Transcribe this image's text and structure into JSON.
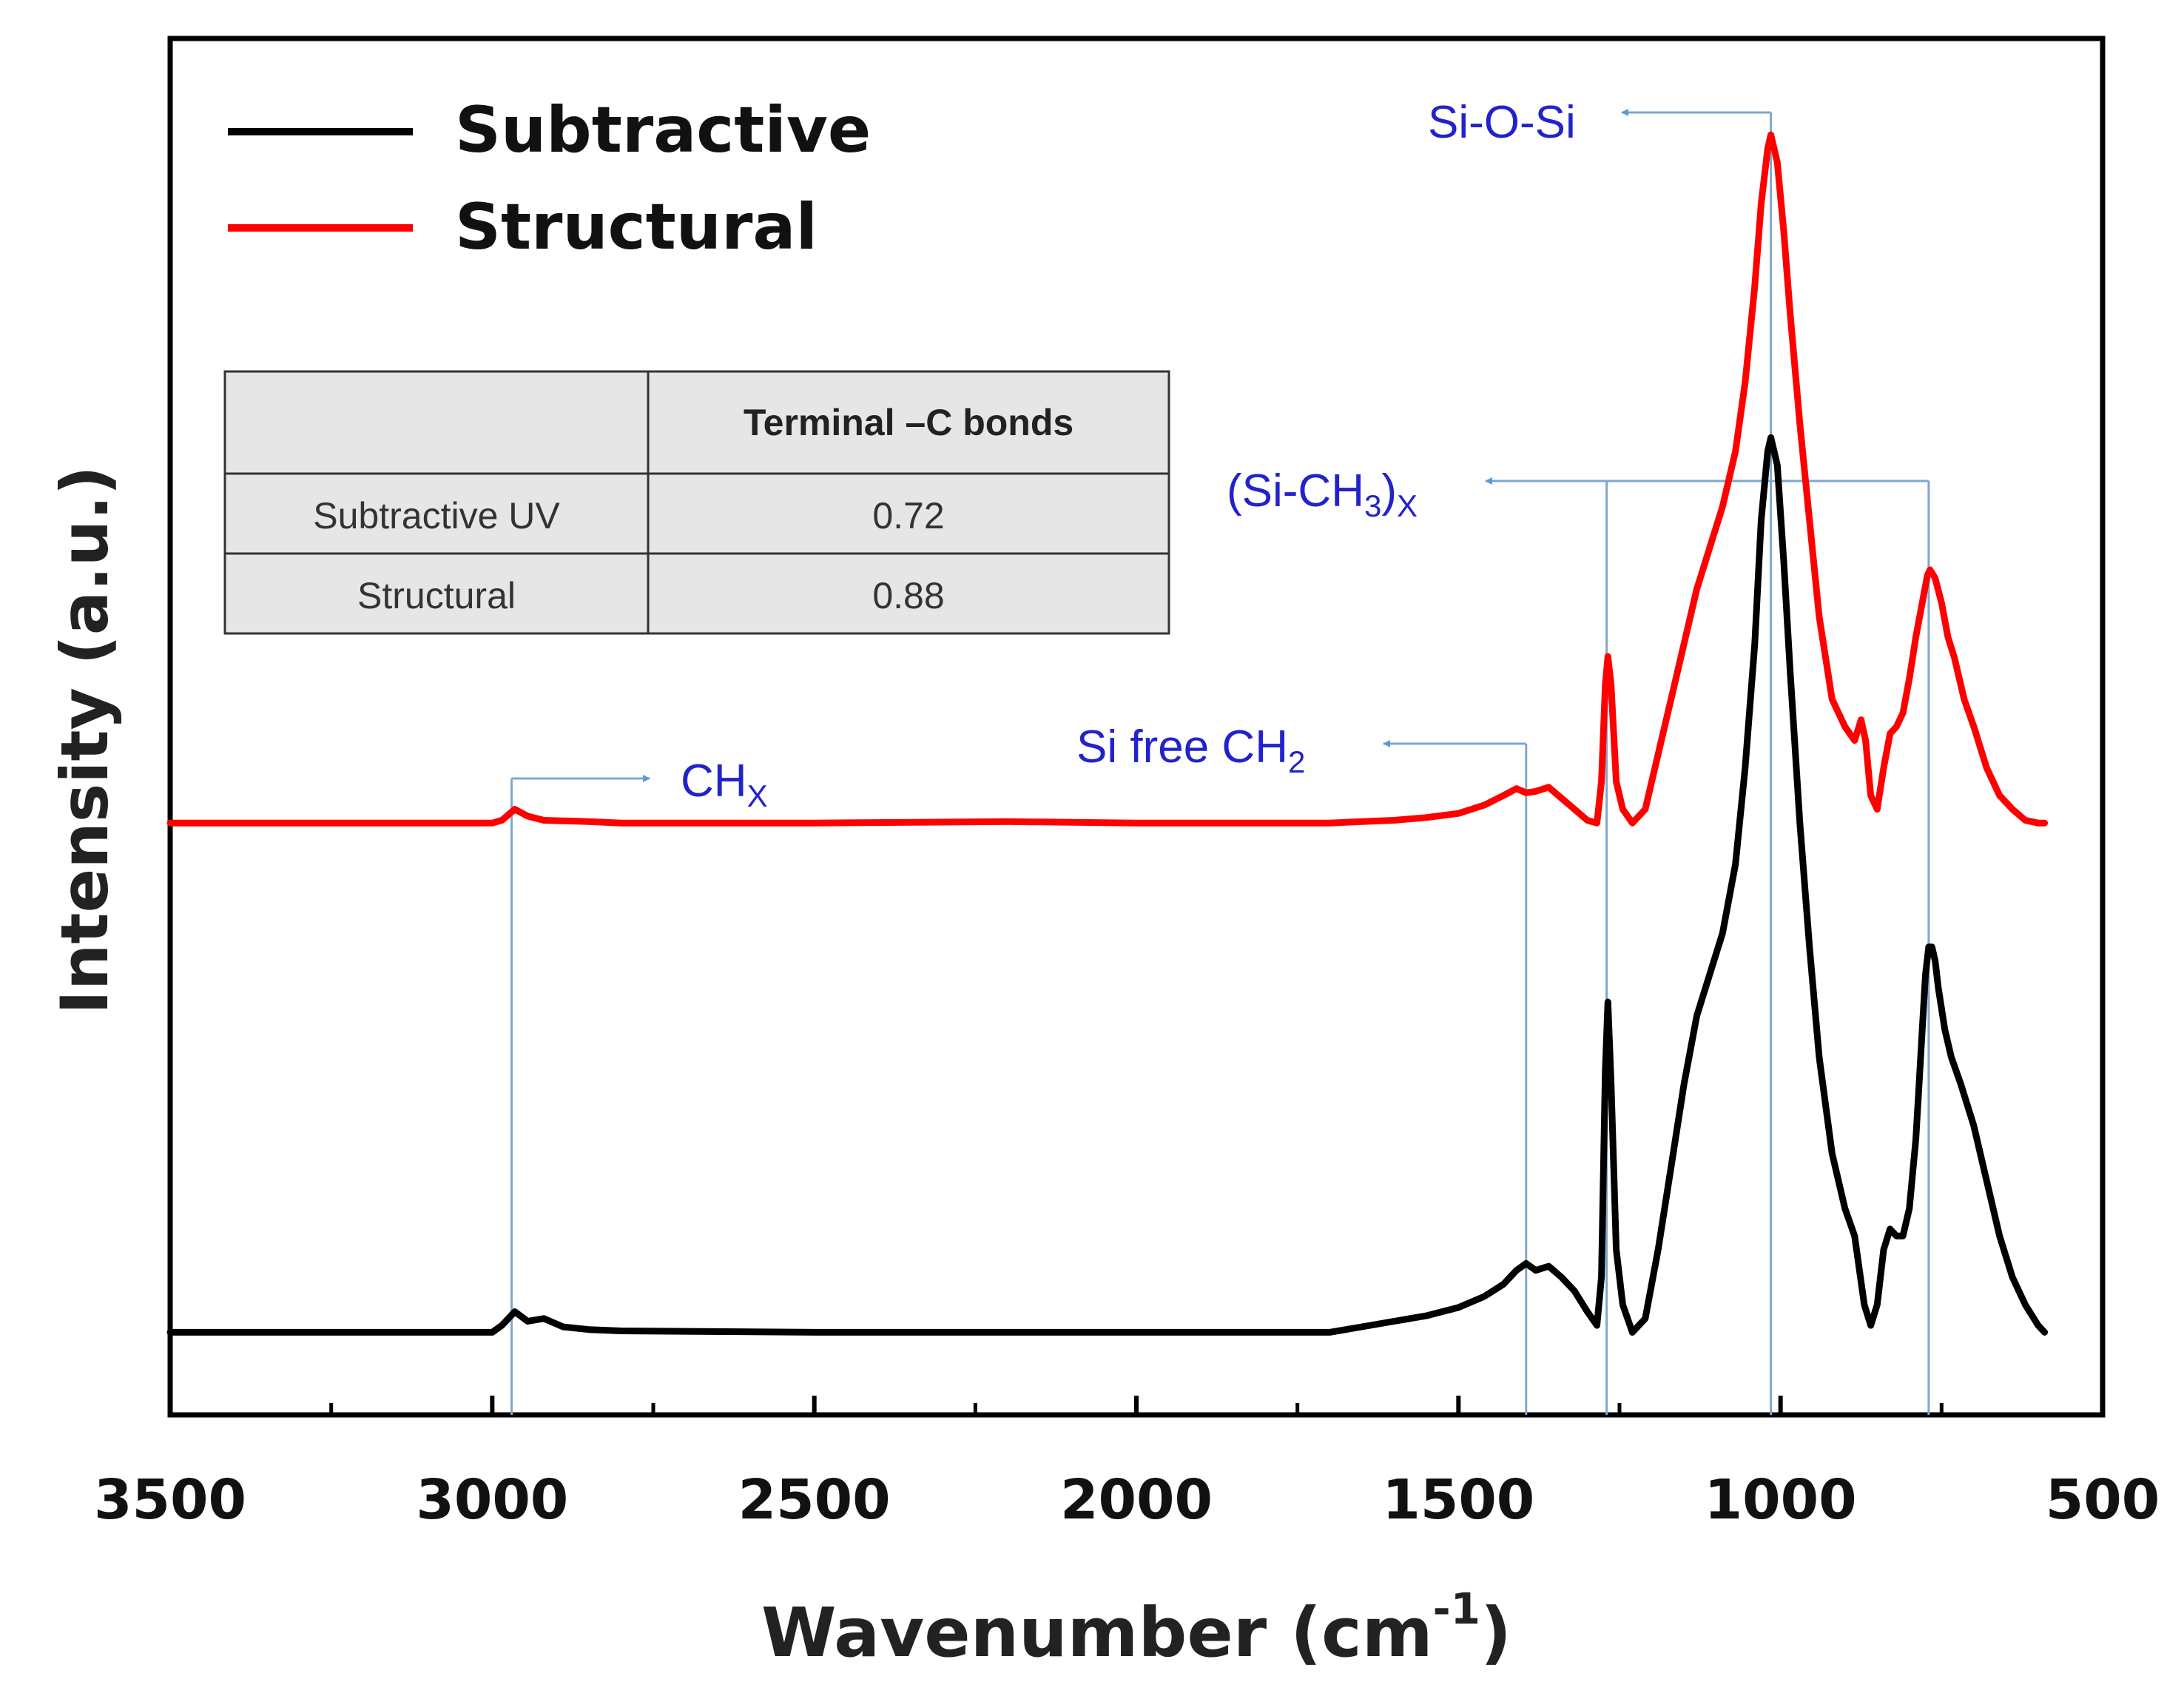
{
  "chart_data": {
    "type": "line",
    "xlabel": "Wavenumber (cm",
    "xlabel_sup": "-1",
    "xlabel_close": ")",
    "ylabel": "Intensity (a.u.)",
    "xlim": [
      3500,
      500
    ],
    "x_ticks": [
      3500,
      3000,
      2500,
      2000,
      1500,
      1000,
      500
    ],
    "y_ticks": [],
    "legend_position": "top-left",
    "series": [
      {
        "name": "Subtractive",
        "color": "#000000",
        "points": [
          [
            3500,
            0.06
          ],
          [
            3100,
            0.06
          ],
          [
            3000,
            0.06
          ],
          [
            2985,
            0.065
          ],
          [
            2965,
            0.075
          ],
          [
            2945,
            0.068
          ],
          [
            2920,
            0.07
          ],
          [
            2890,
            0.064
          ],
          [
            2850,
            0.062
          ],
          [
            2800,
            0.061
          ],
          [
            2500,
            0.06
          ],
          [
            2000,
            0.06
          ],
          [
            1700,
            0.06
          ],
          [
            1650,
            0.064
          ],
          [
            1600,
            0.068
          ],
          [
            1550,
            0.072
          ],
          [
            1500,
            0.078
          ],
          [
            1460,
            0.086
          ],
          [
            1430,
            0.095
          ],
          [
            1410,
            0.105
          ],
          [
            1395,
            0.11
          ],
          [
            1380,
            0.105
          ],
          [
            1360,
            0.108
          ],
          [
            1340,
            0.1
          ],
          [
            1320,
            0.09
          ],
          [
            1300,
            0.075
          ],
          [
            1285,
            0.065
          ],
          [
            1278,
            0.1
          ],
          [
            1272,
            0.25
          ],
          [
            1268,
            0.3
          ],
          [
            1263,
            0.24
          ],
          [
            1255,
            0.12
          ],
          [
            1245,
            0.08
          ],
          [
            1230,
            0.06
          ],
          [
            1210,
            0.07
          ],
          [
            1190,
            0.12
          ],
          [
            1170,
            0.18
          ],
          [
            1150,
            0.24
          ],
          [
            1130,
            0.29
          ],
          [
            1110,
            0.32
          ],
          [
            1090,
            0.35
          ],
          [
            1070,
            0.4
          ],
          [
            1055,
            0.47
          ],
          [
            1040,
            0.56
          ],
          [
            1030,
            0.65
          ],
          [
            1020,
            0.7
          ],
          [
            1015,
            0.71
          ],
          [
            1005,
            0.69
          ],
          [
            995,
            0.62
          ],
          [
            985,
            0.54
          ],
          [
            970,
            0.43
          ],
          [
            955,
            0.34
          ],
          [
            940,
            0.26
          ],
          [
            920,
            0.19
          ],
          [
            900,
            0.15
          ],
          [
            885,
            0.13
          ],
          [
            870,
            0.08
          ],
          [
            860,
            0.065
          ],
          [
            850,
            0.08
          ],
          [
            840,
            0.12
          ],
          [
            830,
            0.135
          ],
          [
            820,
            0.13
          ],
          [
            810,
            0.13
          ],
          [
            800,
            0.15
          ],
          [
            790,
            0.2
          ],
          [
            785,
            0.24
          ],
          [
            780,
            0.28
          ],
          [
            775,
            0.32
          ],
          [
            770,
            0.34
          ],
          [
            765,
            0.34
          ],
          [
            760,
            0.33
          ],
          [
            755,
            0.31
          ],
          [
            745,
            0.28
          ],
          [
            735,
            0.26
          ],
          [
            720,
            0.24
          ],
          [
            700,
            0.21
          ],
          [
            680,
            0.17
          ],
          [
            660,
            0.13
          ],
          [
            640,
            0.1
          ],
          [
            620,
            0.08
          ],
          [
            600,
            0.065
          ],
          [
            590,
            0.06
          ]
        ]
      },
      {
        "name": "Structural",
        "color": "#ff0000",
        "points": [
          [
            3500,
            0.43
          ],
          [
            3100,
            0.43
          ],
          [
            3000,
            0.43
          ],
          [
            2985,
            0.432
          ],
          [
            2965,
            0.44
          ],
          [
            2945,
            0.435
          ],
          [
            2920,
            0.432
          ],
          [
            2850,
            0.431
          ],
          [
            2800,
            0.43
          ],
          [
            2500,
            0.43
          ],
          [
            2200,
            0.431
          ],
          [
            2000,
            0.43
          ],
          [
            1700,
            0.43
          ],
          [
            1650,
            0.431
          ],
          [
            1600,
            0.432
          ],
          [
            1550,
            0.434
          ],
          [
            1500,
            0.437
          ],
          [
            1460,
            0.443
          ],
          [
            1430,
            0.45
          ],
          [
            1410,
            0.455
          ],
          [
            1395,
            0.452
          ],
          [
            1380,
            0.453
          ],
          [
            1360,
            0.456
          ],
          [
            1340,
            0.448
          ],
          [
            1320,
            0.44
          ],
          [
            1300,
            0.432
          ],
          [
            1285,
            0.43
          ],
          [
            1278,
            0.46
          ],
          [
            1272,
            0.53
          ],
          [
            1268,
            0.551
          ],
          [
            1263,
            0.53
          ],
          [
            1255,
            0.46
          ],
          [
            1245,
            0.44
          ],
          [
            1230,
            0.43
          ],
          [
            1210,
            0.44
          ],
          [
            1190,
            0.48
          ],
          [
            1170,
            0.52
          ],
          [
            1150,
            0.56
          ],
          [
            1130,
            0.6
          ],
          [
            1110,
            0.63
          ],
          [
            1090,
            0.66
          ],
          [
            1070,
            0.7
          ],
          [
            1055,
            0.75
          ],
          [
            1040,
            0.82
          ],
          [
            1030,
            0.88
          ],
          [
            1020,
            0.92
          ],
          [
            1015,
            0.93
          ],
          [
            1005,
            0.91
          ],
          [
            995,
            0.86
          ],
          [
            985,
            0.8
          ],
          [
            970,
            0.72
          ],
          [
            955,
            0.65
          ],
          [
            940,
            0.58
          ],
          [
            920,
            0.52
          ],
          [
            900,
            0.5
          ],
          [
            885,
            0.49
          ],
          [
            875,
            0.505
          ],
          [
            868,
            0.49
          ],
          [
            860,
            0.45
          ],
          [
            850,
            0.44
          ],
          [
            840,
            0.47
          ],
          [
            830,
            0.495
          ],
          [
            820,
            0.5
          ],
          [
            810,
            0.51
          ],
          [
            800,
            0.535
          ],
          [
            790,
            0.565
          ],
          [
            780,
            0.59
          ],
          [
            772,
            0.61
          ],
          [
            768,
            0.614
          ],
          [
            760,
            0.608
          ],
          [
            750,
            0.59
          ],
          [
            740,
            0.565
          ],
          [
            730,
            0.55
          ],
          [
            715,
            0.52
          ],
          [
            700,
            0.5
          ],
          [
            680,
            0.47
          ],
          [
            660,
            0.45
          ],
          [
            640,
            0.44
          ],
          [
            620,
            0.432
          ],
          [
            600,
            0.43
          ],
          [
            590,
            0.43
          ]
        ]
      }
    ],
    "annotations": [
      {
        "id": "si-o-si",
        "label": "Si-O-Si",
        "wavenumbers": [
          1015
        ]
      },
      {
        "id": "si-ch3",
        "label_parts": [
          "(Si-CH",
          "3",
          ")",
          "X"
        ],
        "wavenumbers": [
          1270,
          770
        ]
      },
      {
        "id": "si-free-ch2",
        "label_parts": [
          "Si free CH",
          "2"
        ],
        "wavenumbers": [
          1395
        ]
      },
      {
        "id": "chx",
        "label_parts": [
          "CH",
          "X"
        ],
        "wavenumbers": [
          2970
        ]
      }
    ],
    "annotation_color": "#2222cc",
    "guide_color": "#7fa8cc",
    "inset_table": {
      "header": [
        "",
        "Terminal –C bonds"
      ],
      "rows": [
        [
          "Subtractive UV",
          "0.72"
        ],
        [
          "Structural",
          "0.88"
        ]
      ]
    }
  }
}
